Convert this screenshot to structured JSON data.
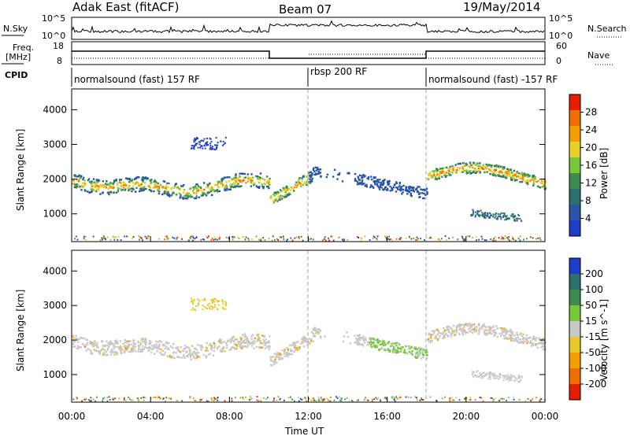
{
  "header": {
    "station": "Adak East (fitACF)",
    "beam": "Beam 07",
    "date": "19/May/2014"
  },
  "noise_panel": {
    "left_label": "N.Sky",
    "left_ticks": [
      "10^5",
      "10^0"
    ],
    "right_label": "N.Search",
    "right_ticks": [
      "10^5",
      "10^0"
    ]
  },
  "freq_panel": {
    "left_label": "Freq.",
    "left_unit": "[MHz]",
    "left_ticks": [
      "18",
      "8"
    ],
    "right_label": "Nave",
    "right_ticks": [
      "60",
      "0"
    ],
    "cpid_label": "CPID",
    "cpid_segments": [
      "normalsound (fast) 157 RF",
      "rbsp 200 RF",
      "normalsound (fast) -157 RF"
    ]
  },
  "colors": {
    "power": [
      "#1e3cc8",
      "#2a55a6",
      "#2d6e6e",
      "#3c8c50",
      "#78c83c",
      "#e6d228",
      "#f5a000",
      "#f06e00",
      "#e61e00"
    ],
    "velocity": [
      "#1e3cc8",
      "#2d6e6e",
      "#3c8c50",
      "#78c83c",
      "#c8c8c8",
      "#e6c828",
      "#f5a000",
      "#f06e00",
      "#e61e00"
    ]
  },
  "chart_data": [
    {
      "type": "heatmap",
      "panel": "power",
      "ylabel": "Slant Range [km]",
      "yticks": [
        "1000",
        "2000",
        "3000",
        "4000"
      ],
      "ylim": [
        200,
        4600
      ],
      "xlim": [
        "00:00",
        "24:00"
      ],
      "colorbar_label": "Power [dB]",
      "colorbar_ticks": [
        "4",
        "8",
        "12",
        "16",
        "20",
        "24",
        "28"
      ]
    },
    {
      "type": "heatmap",
      "panel": "velocity",
      "ylabel": "Slant Range [km]",
      "yticks": [
        "1000",
        "2000",
        "3000",
        "4000"
      ],
      "ylim": [
        200,
        4600
      ],
      "xlabel": "Time UT",
      "xticks": [
        "00:00",
        "04:00",
        "08:00",
        "12:00",
        "16:00",
        "20:00",
        "00:00"
      ],
      "colorbar_label": "Velocity [m s^-1]",
      "colorbar_ticks": [
        "200",
        "100",
        "50",
        "15",
        "-15",
        "-50",
        "-100",
        "-200"
      ]
    }
  ]
}
